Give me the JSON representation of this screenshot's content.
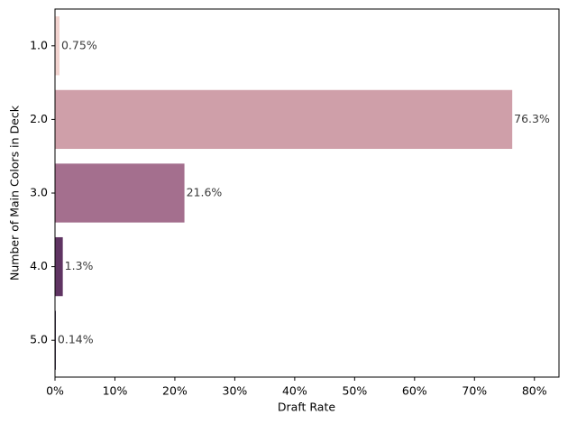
{
  "chart_data": {
    "type": "barh",
    "x_label": "Draft Rate",
    "y_label": "Number of Main Colors in Deck",
    "categories": [
      "1.0",
      "2.0",
      "3.0",
      "4.0",
      "5.0"
    ],
    "values": [
      0.75,
      76.3,
      21.6,
      1.3,
      0.14
    ],
    "value_labels": [
      "0.75%",
      "76.3%",
      "21.6%",
      "1.3%",
      "0.14%"
    ],
    "colors": [
      "#f2d3cf",
      "#cf9fa9",
      "#a46f8e",
      "#5f3462",
      "#2d1e3e"
    ],
    "xlim": [
      0,
      84.1
    ],
    "xticks": [
      {
        "value": 0,
        "label": "0%"
      },
      {
        "value": 10,
        "label": "10%"
      },
      {
        "value": 20,
        "label": "20%"
      },
      {
        "value": 30,
        "label": "30%"
      },
      {
        "value": 40,
        "label": "40%"
      },
      {
        "value": 50,
        "label": "50%"
      },
      {
        "value": 60,
        "label": "60%"
      },
      {
        "value": 70,
        "label": "70%"
      },
      {
        "value": 80,
        "label": "80%"
      }
    ],
    "grid": false
  }
}
